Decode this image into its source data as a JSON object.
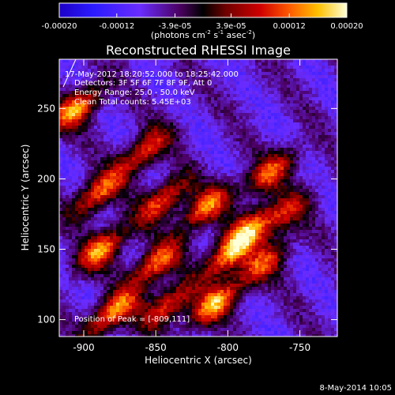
{
  "colorbar": {
    "ticks": [
      "-0.00020",
      "-0.00012",
      "-3.9e-05",
      "3.9e-05",
      "0.00012",
      "0.00020"
    ],
    "tick_values": [
      -0.0002,
      -0.00012,
      -3.9e-05,
      3.9e-05,
      0.00012,
      0.0002
    ],
    "units_prefix": "(photons cm",
    "units_sup1": "-2",
    "units_mid": " s",
    "units_sup2": "-1",
    "units_suffix": " asec",
    "units_sup3": "-2",
    "units_close": ")"
  },
  "chart_data": {
    "type": "heatmap",
    "title": "Reconstructed RHESSI Image",
    "xlabel": "Heliocentric X (arcsec)",
    "ylabel": "Heliocentric Y (arcsec)",
    "xlim": [
      -917,
      -724
    ],
    "ylim": [
      88,
      285
    ],
    "x_ticks": [
      -900,
      -850,
      -800,
      -750
    ],
    "x_tick_labels": [
      "-900",
      "-850",
      "-800",
      "-750"
    ],
    "y_ticks": [
      100,
      150,
      200,
      250
    ],
    "y_tick_labels": [
      "100",
      "150",
      "200",
      "250"
    ],
    "value_range": [
      -0.0002,
      0.0002
    ],
    "colormap": "rhessi-blue-purple-red-yellow-white",
    "bright_sources": [
      {
        "x": -905,
        "y": 250,
        "peak": 1.0
      },
      {
        "x": -890,
        "y": 190,
        "peak": 0.9
      },
      {
        "x": -888,
        "y": 150,
        "peak": 0.95
      },
      {
        "x": -880,
        "y": 105,
        "peak": 1.0
      },
      {
        "x": -858,
        "y": 220,
        "peak": 0.8
      },
      {
        "x": -845,
        "y": 185,
        "peak": 0.85
      },
      {
        "x": -850,
        "y": 140,
        "peak": 0.9
      },
      {
        "x": -842,
        "y": 110,
        "peak": 0.8
      },
      {
        "x": -815,
        "y": 180,
        "peak": 0.9
      },
      {
        "x": -809,
        "y": 111,
        "peak": 1.0
      },
      {
        "x": -800,
        "y": 145,
        "peak": 0.9
      },
      {
        "x": -785,
        "y": 165,
        "peak": 0.85
      },
      {
        "x": -770,
        "y": 205,
        "peak": 0.8
      },
      {
        "x": -775,
        "y": 140,
        "peak": 0.75
      },
      {
        "x": -760,
        "y": 175,
        "peak": 0.6
      }
    ],
    "annotations": {
      "time": "17-May-2012 18:20:52.000 to 18:25:42.000",
      "detectors": "Detectors: 3F 5F 6F 7F 8F 9F, Att 0",
      "energy": "Energy Range: 25.0 - 50.0 keV",
      "clean": "Clean     Total counts: 5.45E+03",
      "peak": "Position of Peak = [-809,111]"
    }
  },
  "footer": {
    "date": "8-May-2014 10:05"
  }
}
